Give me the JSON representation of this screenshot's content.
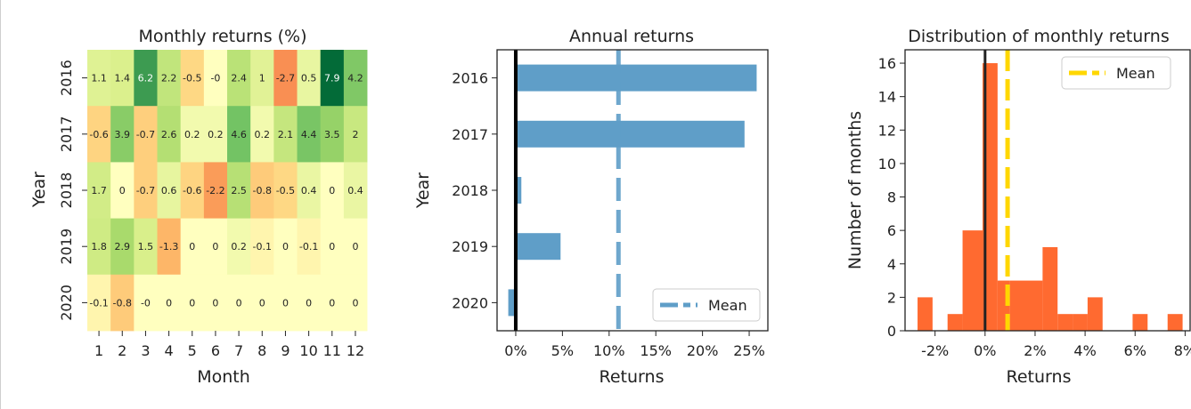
{
  "chart_data": [
    {
      "type": "heatmap",
      "title": "Monthly returns (%)",
      "xlabel": "Month",
      "ylabel": "Year",
      "x": [
        "1",
        "2",
        "3",
        "4",
        "5",
        "6",
        "7",
        "8",
        "9",
        "10",
        "11",
        "12"
      ],
      "y": [
        "2016",
        "2017",
        "2018",
        "2019",
        "2020"
      ],
      "labels": [
        [
          "1.1",
          "1.4",
          "6.2",
          "2.2",
          "-0.5",
          "-0",
          "2.4",
          "1",
          "-2.7",
          "0.5",
          "7.9",
          "4.2"
        ],
        [
          "-0.6",
          "3.9",
          "-0.7",
          "2.6",
          "0.2",
          "0.2",
          "4.6",
          "0.2",
          "2.1",
          "4.4",
          "3.5",
          "2"
        ],
        [
          "1.7",
          "0",
          "-0.7",
          "0.6",
          "-0.6",
          "-2.2",
          "2.5",
          "-0.8",
          "-0.5",
          "0.4",
          "0",
          "0.4"
        ],
        [
          "1.8",
          "2.9",
          "1.5",
          "-1.3",
          "0",
          "0",
          "0.2",
          "-0.1",
          "0",
          "-0.1",
          "0",
          "0"
        ],
        [
          "-0.1",
          "-0.8",
          "-0",
          "0",
          "0",
          "0",
          "0",
          "0",
          "0",
          "0",
          "0",
          "0"
        ]
      ],
      "colormap": "RdYlGn",
      "center": 0
    },
    {
      "type": "bar",
      "orientation": "horizontal",
      "title": "Annual returns",
      "xlabel": "Returns",
      "ylabel": "Year",
      "categories": [
        "2016",
        "2017",
        "2018",
        "2019",
        "2020"
      ],
      "values": [
        25.8,
        24.5,
        0.6,
        4.8,
        -0.8
      ],
      "xticks": [
        "0%",
        "5%",
        "10%",
        "15%",
        "20%",
        "25%"
      ],
      "xtick_values": [
        0,
        5,
        10,
        15,
        20,
        25
      ],
      "xlim": [
        -2,
        27
      ],
      "mean": 11.0,
      "legend": [
        "Mean"
      ],
      "legend_position": "lower-right",
      "bar_color": "#5f9ec8"
    },
    {
      "type": "histogram",
      "title": "Distribution of monthly returns",
      "xlabel": "Returns",
      "ylabel": "Number of months",
      "bins": [
        {
          "from": -2.7,
          "to": -2.1,
          "count": 2
        },
        {
          "from": -2.1,
          "to": -1.5,
          "count": 0
        },
        {
          "from": -1.5,
          "to": -0.9,
          "count": 1
        },
        {
          "from": -0.9,
          "to": -0.1,
          "count": 6
        },
        {
          "from": -0.1,
          "to": 0.5,
          "count": 16
        },
        {
          "from": 0.5,
          "to": 1.0,
          "count": 3
        },
        {
          "from": 1.0,
          "to": 2.3,
          "count": 3
        },
        {
          "from": 2.3,
          "to": 2.9,
          "count": 5
        },
        {
          "from": 2.9,
          "to": 3.5,
          "count": 1
        },
        {
          "from": 3.5,
          "to": 4.1,
          "count": 1
        },
        {
          "from": 4.1,
          "to": 4.7,
          "count": 2
        },
        {
          "from": 5.9,
          "to": 6.5,
          "count": 1
        },
        {
          "from": 7.3,
          "to": 7.9,
          "count": 1
        }
      ],
      "xticks": [
        "-2%",
        "0%",
        "2%",
        "4%",
        "6%",
        "8%"
      ],
      "xtick_values": [
        -2,
        0,
        2,
        4,
        6,
        8
      ],
      "yticks": [
        "0",
        "2",
        "4",
        "6",
        "8",
        "10",
        "12",
        "14",
        "16"
      ],
      "ytick_values": [
        0,
        2,
        4,
        6,
        8,
        10,
        12,
        14,
        16
      ],
      "xlim": [
        -3.2,
        8.2
      ],
      "ylim": [
        0,
        16.8
      ],
      "mean": 0.9,
      "legend": [
        "Mean"
      ],
      "legend_position": "top-right",
      "bar_color": "#ff6a30",
      "mean_color": "#ffd700"
    }
  ]
}
